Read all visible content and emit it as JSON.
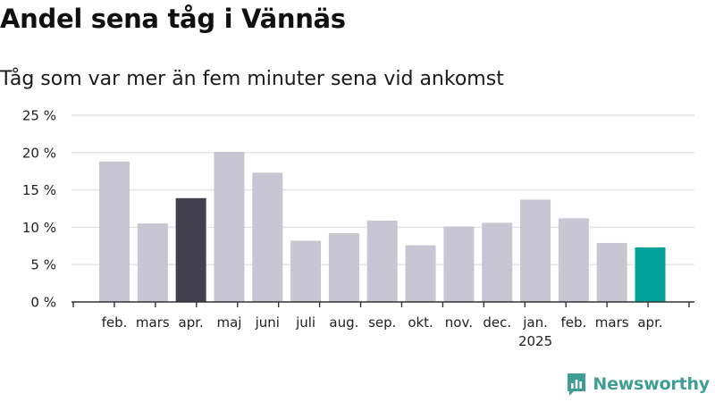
{
  "header": {
    "title": "Andel sena tåg i Vännäs",
    "subtitle": "Tåg som var mer än fem minuter sena vid ankomst"
  },
  "logo": {
    "text": "Newsworthy",
    "icon": "newsworthy-logo-icon",
    "color": "#3f9e93"
  },
  "colors": {
    "default_bar": "#c8c6d2",
    "highlight_bar": "#42404f",
    "latest_bar": "#00a29a",
    "grid": "#e3e3e3",
    "axis": "#333333"
  },
  "chart_data": {
    "type": "bar",
    "title": "Andel sena tåg i Vännäs",
    "subtitle": "Tåg som var mer än fem minuter sena vid ankomst",
    "categories": [
      "feb.",
      "mars",
      "apr.",
      "maj",
      "juni",
      "juli",
      "aug.",
      "sep.",
      "okt.",
      "nov.",
      "dec.",
      "jan.",
      "feb.",
      "mars",
      "apr."
    ],
    "year_labels": [
      {
        "index": 11,
        "label": "2025"
      }
    ],
    "values": [
      18.8,
      10.5,
      13.9,
      20.1,
      17.3,
      8.2,
      9.2,
      10.9,
      7.6,
      10.1,
      10.6,
      13.7,
      11.2,
      7.9,
      7.3
    ],
    "highlight": {
      "2": "highlight",
      "14": "latest"
    },
    "ylim": [
      0,
      25
    ],
    "yticks": [
      0,
      5,
      10,
      15,
      20,
      25
    ],
    "ytick_labels": [
      "0 %",
      "5 %",
      "10 %",
      "15 %",
      "20 %",
      "25 %"
    ],
    "xlabel": "",
    "ylabel": "",
    "grid": true
  }
}
